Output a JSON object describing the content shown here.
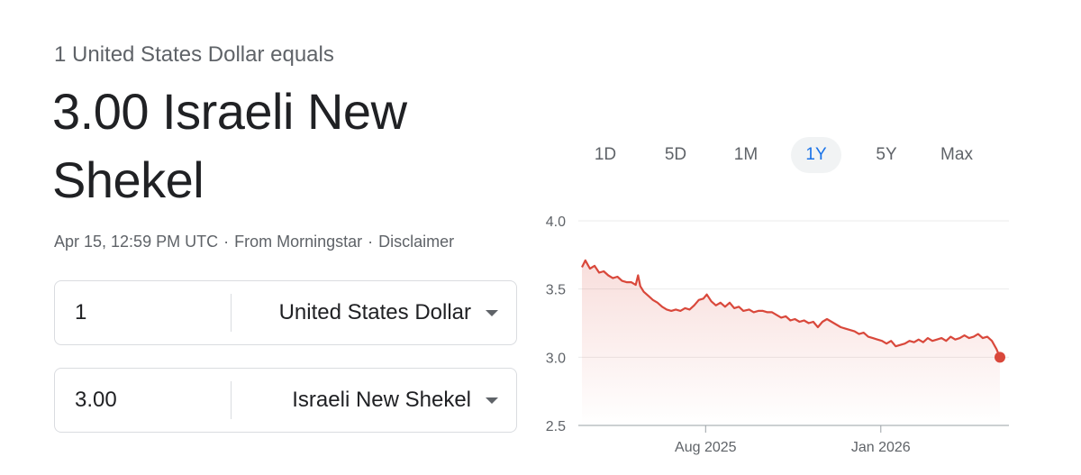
{
  "header": {
    "subtitle": "1 United States Dollar equals",
    "value_line": "3.00 Israeli New Shekel"
  },
  "meta": {
    "timestamp": "Apr 15, 12:59 PM UTC",
    "separator": "·",
    "source": "From Morningstar",
    "disclaimer": "Disclaimer"
  },
  "converter": {
    "from": {
      "amount": "1",
      "currency": "United States Dollar"
    },
    "to": {
      "amount": "3.00",
      "currency": "Israeli New Shekel"
    }
  },
  "range_tabs": [
    {
      "label": "1D",
      "active": false
    },
    {
      "label": "5D",
      "active": false
    },
    {
      "label": "1M",
      "active": false
    },
    {
      "label": "1Y",
      "active": true
    },
    {
      "label": "5Y",
      "active": false
    },
    {
      "label": "Max",
      "active": false
    }
  ],
  "colors": {
    "line": "#d9483b",
    "active_tab_text": "#1a73e8",
    "grid": "#ebebeb"
  },
  "chart_data": {
    "type": "area",
    "title": "",
    "xlabel": "",
    "ylabel": "",
    "ylim": [
      2.5,
      4.0
    ],
    "yticks": [
      "2.5",
      "3.0",
      "3.5",
      "4.0"
    ],
    "xticks": [
      {
        "label": "Aug 2025",
        "date": "2025-08-01"
      },
      {
        "label": "Jan 2026",
        "date": "2026-01-01"
      }
    ],
    "grid": true,
    "x_start": "2025-04-15",
    "x_end": "2026-04-15",
    "series": [
      {
        "points": [
          [
            "2025-04-15",
            3.66
          ],
          [
            "2025-04-18",
            3.71
          ],
          [
            "2025-04-22",
            3.65
          ],
          [
            "2025-04-26",
            3.67
          ],
          [
            "2025-04-30",
            3.62
          ],
          [
            "2025-05-04",
            3.63
          ],
          [
            "2025-05-08",
            3.6
          ],
          [
            "2025-05-12",
            3.58
          ],
          [
            "2025-05-16",
            3.59
          ],
          [
            "2025-05-20",
            3.56
          ],
          [
            "2025-05-24",
            3.55
          ],
          [
            "2025-05-28",
            3.55
          ],
          [
            "2025-06-01",
            3.53
          ],
          [
            "2025-06-03",
            3.6
          ],
          [
            "2025-06-05",
            3.52
          ],
          [
            "2025-06-08",
            3.48
          ],
          [
            "2025-06-12",
            3.45
          ],
          [
            "2025-06-16",
            3.42
          ],
          [
            "2025-06-20",
            3.4
          ],
          [
            "2025-06-24",
            3.37
          ],
          [
            "2025-06-28",
            3.35
          ],
          [
            "2025-07-02",
            3.34
          ],
          [
            "2025-07-06",
            3.35
          ],
          [
            "2025-07-10",
            3.34
          ],
          [
            "2025-07-14",
            3.36
          ],
          [
            "2025-07-18",
            3.35
          ],
          [
            "2025-07-22",
            3.38
          ],
          [
            "2025-07-26",
            3.42
          ],
          [
            "2025-07-30",
            3.43
          ],
          [
            "2025-08-02",
            3.46
          ],
          [
            "2025-08-06",
            3.41
          ],
          [
            "2025-08-10",
            3.38
          ],
          [
            "2025-08-14",
            3.4
          ],
          [
            "2025-08-18",
            3.37
          ],
          [
            "2025-08-22",
            3.4
          ],
          [
            "2025-08-26",
            3.36
          ],
          [
            "2025-08-30",
            3.37
          ],
          [
            "2025-09-03",
            3.34
          ],
          [
            "2025-09-08",
            3.35
          ],
          [
            "2025-09-12",
            3.33
          ],
          [
            "2025-09-16",
            3.34
          ],
          [
            "2025-09-20",
            3.34
          ],
          [
            "2025-09-24",
            3.33
          ],
          [
            "2025-09-28",
            3.33
          ],
          [
            "2025-10-02",
            3.31
          ],
          [
            "2025-10-06",
            3.29
          ],
          [
            "2025-10-10",
            3.3
          ],
          [
            "2025-10-14",
            3.27
          ],
          [
            "2025-10-18",
            3.28
          ],
          [
            "2025-10-22",
            3.26
          ],
          [
            "2025-10-26",
            3.27
          ],
          [
            "2025-10-30",
            3.25
          ],
          [
            "2025-11-03",
            3.26
          ],
          [
            "2025-11-07",
            3.22
          ],
          [
            "2025-11-11",
            3.26
          ],
          [
            "2025-11-15",
            3.28
          ],
          [
            "2025-11-19",
            3.26
          ],
          [
            "2025-11-23",
            3.24
          ],
          [
            "2025-11-27",
            3.22
          ],
          [
            "2025-12-01",
            3.21
          ],
          [
            "2025-12-05",
            3.2
          ],
          [
            "2025-12-09",
            3.19
          ],
          [
            "2025-12-13",
            3.17
          ],
          [
            "2025-12-17",
            3.18
          ],
          [
            "2025-12-21",
            3.15
          ],
          [
            "2025-12-25",
            3.14
          ],
          [
            "2025-12-29",
            3.13
          ],
          [
            "2026-01-02",
            3.12
          ],
          [
            "2026-01-06",
            3.1
          ],
          [
            "2026-01-10",
            3.12
          ],
          [
            "2026-01-14",
            3.08
          ],
          [
            "2026-01-18",
            3.09
          ],
          [
            "2026-01-22",
            3.1
          ],
          [
            "2026-01-26",
            3.12
          ],
          [
            "2026-01-30",
            3.11
          ],
          [
            "2026-02-03",
            3.13
          ],
          [
            "2026-02-07",
            3.11
          ],
          [
            "2026-02-11",
            3.14
          ],
          [
            "2026-02-15",
            3.12
          ],
          [
            "2026-02-19",
            3.13
          ],
          [
            "2026-02-23",
            3.14
          ],
          [
            "2026-02-27",
            3.12
          ],
          [
            "2026-03-03",
            3.15
          ],
          [
            "2026-03-07",
            3.13
          ],
          [
            "2026-03-11",
            3.14
          ],
          [
            "2026-03-15",
            3.16
          ],
          [
            "2026-03-19",
            3.14
          ],
          [
            "2026-03-23",
            3.15
          ],
          [
            "2026-03-27",
            3.17
          ],
          [
            "2026-03-31",
            3.14
          ],
          [
            "2026-04-04",
            3.15
          ],
          [
            "2026-04-08",
            3.12
          ],
          [
            "2026-04-12",
            3.06
          ],
          [
            "2026-04-15",
            3.0
          ]
        ]
      }
    ]
  }
}
